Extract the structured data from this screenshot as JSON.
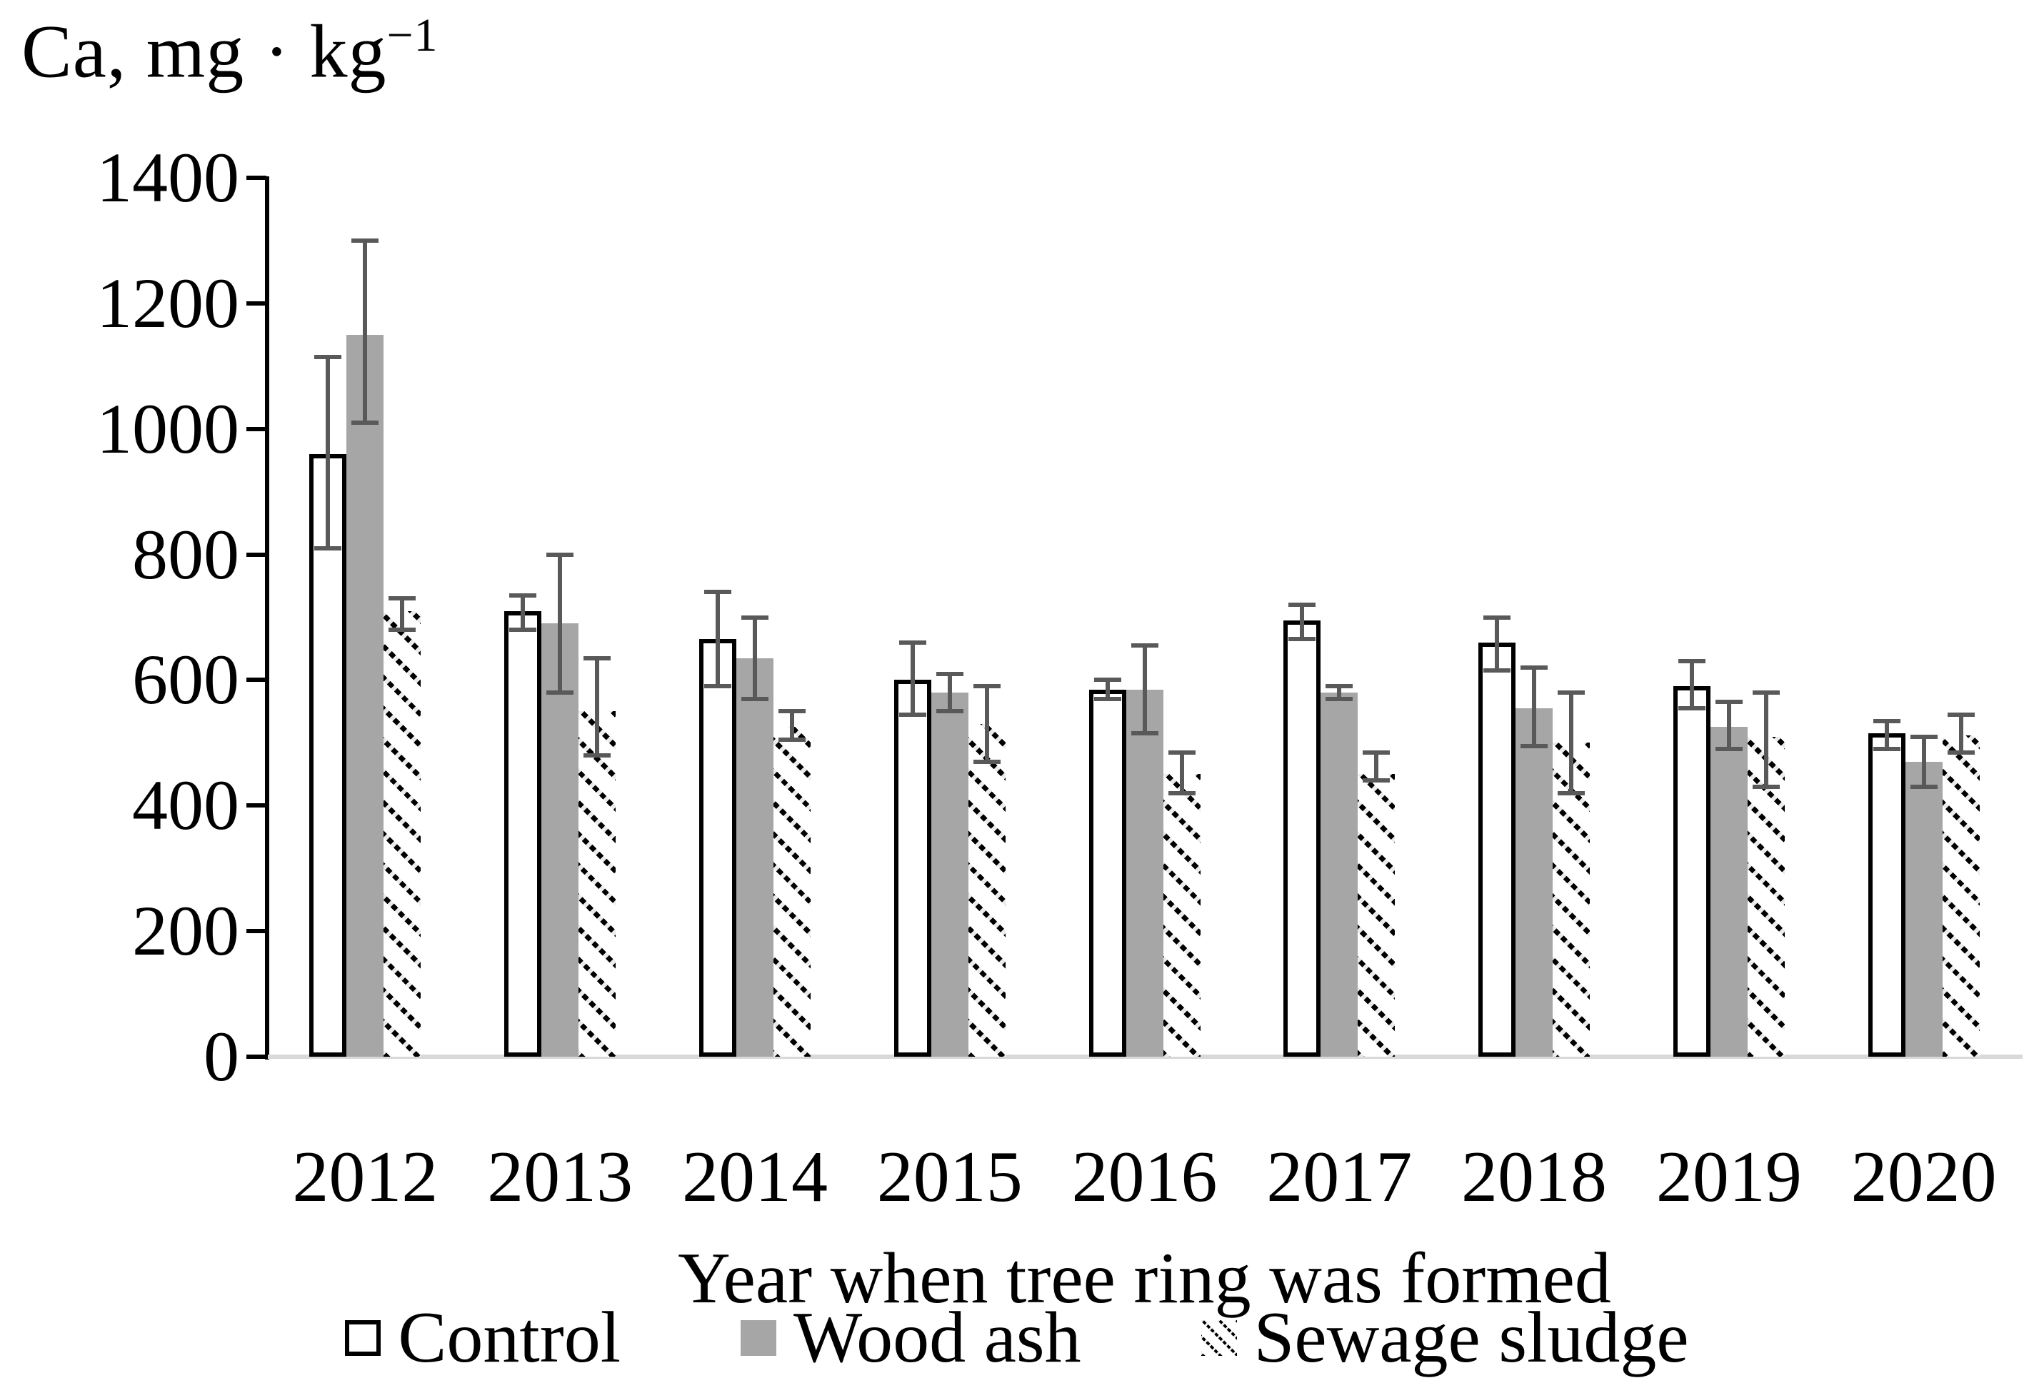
{
  "title": {
    "main": "Ca, mg · kg",
    "sup": "−1"
  },
  "chart_data": {
    "type": "bar",
    "title": "Ca, mg · kg⁻¹",
    "xlabel": "Year when tree ring was formed",
    "ylabel": "Ca, mg · kg⁻¹",
    "ylim": [
      0,
      1400
    ],
    "yticks": [
      0,
      200,
      400,
      600,
      800,
      1000,
      1200,
      1400
    ],
    "grid": false,
    "legend_position": "bottom",
    "error_bars": true,
    "categories": [
      "2012",
      "2013",
      "2014",
      "2015",
      "2016",
      "2017",
      "2018",
      "2019",
      "2020"
    ],
    "series": [
      {
        "name": "Control",
        "style": "control",
        "values": [
          960,
          710,
          665,
          600,
          585,
          695,
          660,
          590,
          515
        ],
        "err_low": [
          810,
          680,
          590,
          545,
          570,
          665,
          615,
          555,
          490
        ],
        "err_high": [
          1115,
          735,
          740,
          660,
          600,
          720,
          700,
          630,
          535
        ]
      },
      {
        "name": "Wood ash",
        "style": "wood-ash",
        "values": [
          1150,
          690,
          635,
          580,
          585,
          580,
          555,
          525,
          470
        ],
        "err_low": [
          1010,
          580,
          570,
          550,
          515,
          570,
          495,
          490,
          430
        ],
        "err_high": [
          1300,
          800,
          700,
          610,
          655,
          590,
          620,
          565,
          510
        ]
      },
      {
        "name": "Sewage sludge",
        "style": "sewage",
        "values": [
          710,
          550,
          525,
          530,
          450,
          450,
          500,
          510,
          512
        ],
        "err_low": [
          680,
          480,
          505,
          470,
          420,
          440,
          420,
          430,
          485
        ],
        "err_high": [
          730,
          635,
          550,
          590,
          485,
          485,
          580,
          580,
          545
        ]
      }
    ],
    "colors": {
      "wood_ash_fill": "#a6a6a6",
      "error_bar": "#595959",
      "axis": "#000000",
      "baseline": "#d9d9d9",
      "background": "#ffffff"
    }
  }
}
